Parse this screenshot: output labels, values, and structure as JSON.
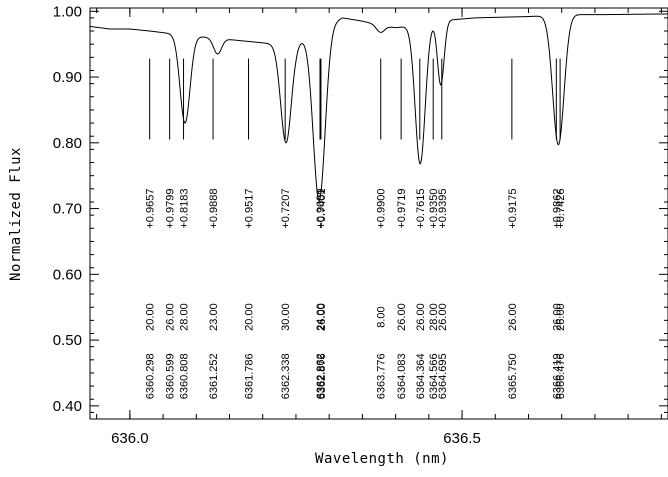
{
  "chart_data": {
    "type": "line",
    "xlabel": "Wavelength (nm)",
    "ylabel": "Normalized Flux",
    "xlim": [
      635.94,
      636.81
    ],
    "ylim": [
      0.38,
      1.005
    ],
    "x_ticks": [
      636.0,
      636.5
    ],
    "x_tick_labels": [
      "636.0",
      "636.5"
    ],
    "y_ticks": [
      0.4,
      0.5,
      0.6,
      0.7,
      0.8,
      0.9,
      1.0
    ],
    "y_tick_labels": [
      "0.40",
      "0.50",
      "0.60",
      "0.70",
      "0.80",
      "0.90",
      "1.00"
    ],
    "spectrum_continuum": [
      [
        635.94,
        0.977
      ],
      [
        635.97,
        0.973
      ],
      [
        636.0,
        0.973
      ],
      [
        636.03,
        0.97
      ],
      [
        636.07,
        0.965
      ],
      [
        636.12,
        0.96
      ],
      [
        636.17,
        0.955
      ],
      [
        636.22,
        0.95
      ],
      [
        636.25,
        0.95
      ],
      [
        636.28,
        0.972
      ],
      [
        636.32,
        0.99
      ],
      [
        636.35,
        0.985
      ],
      [
        636.38,
        0.978
      ],
      [
        636.4,
        0.975
      ],
      [
        636.44,
        0.98
      ],
      [
        636.46,
        0.985
      ],
      [
        636.52,
        0.99
      ],
      [
        636.6,
        0.992
      ],
      [
        636.66,
        0.995
      ],
      [
        636.72,
        0.995
      ],
      [
        636.81,
        0.996
      ]
    ],
    "absorption_lines": [
      {
        "wavelength": 636.0298,
        "depth": 0.9657,
        "ew": "20.00",
        "label": "6360.298",
        "depth_label": "+0.9657",
        "ew_label": "20.00"
      },
      {
        "wavelength": 636.0599,
        "depth": 0.9799,
        "ew": "26.00",
        "label": "6360.599",
        "depth_label": "+0.9799",
        "ew_label": "26.00"
      },
      {
        "wavelength": 636.0808,
        "depth": 0.8183,
        "ew": "28.00",
        "label": "6360.808",
        "depth_label": "+0.8183",
        "ew_label": "28.00"
      },
      {
        "wavelength": 636.1252,
        "depth": 0.9888,
        "ew": "23.00",
        "label": "6361.252",
        "depth_label": "+0.9888",
        "ew_label": "23.00"
      },
      {
        "wavelength": 636.1786,
        "depth": 0.9517,
        "ew": "20.00",
        "label": "6361.786",
        "depth_label": "+0.9517",
        "ew_label": "20.00"
      },
      {
        "wavelength": 636.2338,
        "depth": 0.7207,
        "ew": "30.00",
        "label": "6362.338",
        "depth_label": "+0.7207",
        "ew_label": "30.00"
      },
      {
        "wavelength": 636.2862,
        "depth": 0.9089,
        "ew": "24.00",
        "label": "6362.862",
        "depth_label": "+0.9089",
        "ew_label": "24.00"
      },
      {
        "wavelength": 636.2876,
        "depth": 0.7401,
        "ew": "26.00",
        "label": "6362.876",
        "depth_label": "+0.7401",
        "ew_label": "26.00"
      },
      {
        "wavelength": 636.3776,
        "depth": 0.99,
        "ew": "8.00",
        "label": "6363.776",
        "depth_label": "+0.9900",
        "ew_label": "8.00"
      },
      {
        "wavelength": 636.4083,
        "depth": 0.9719,
        "ew": "26.00",
        "label": "6364.083",
        "depth_label": "+0.9719",
        "ew_label": "26.00"
      },
      {
        "wavelength": 636.4364,
        "depth": 0.7615,
        "ew": "26.00",
        "label": "6364.364",
        "depth_label": "+0.7615",
        "ew_label": "26.00"
      },
      {
        "wavelength": 636.4566,
        "depth": 0.935,
        "ew": "28.00",
        "label": "6364.566",
        "depth_label": "+0.9350",
        "ew_label": "28.00"
      },
      {
        "wavelength": 636.4695,
        "depth": 0.9395,
        "ew": "26.00",
        "label": "6364.695",
        "depth_label": "+0.9395",
        "ew_label": "26.00"
      },
      {
        "wavelength": 636.575,
        "depth": 0.9175,
        "ew": "26.00",
        "label": "6365.750",
        "depth_label": "+0.9175",
        "ew_label": "26.00"
      },
      {
        "wavelength": 636.6419,
        "depth": 0.9862,
        "ew": "26.00",
        "label": "6366.419",
        "depth_label": "+0.9862",
        "ew_label": "26.00"
      },
      {
        "wavelength": 636.6476,
        "depth": 0.7426,
        "ew": "26.00",
        "label": "6366.476",
        "depth_label": "+0.7426",
        "ew_label": "26.00"
      }
    ],
    "spectrum_dips": [
      {
        "center": 636.083,
        "min_flux": 0.83,
        "width": 0.0075
      },
      {
        "center": 636.132,
        "min_flux": 0.935,
        "width": 0.006
      },
      {
        "center": 636.235,
        "min_flux": 0.8,
        "width": 0.008
      },
      {
        "center": 636.285,
        "min_flux": 0.712,
        "width": 0.009
      },
      {
        "center": 636.377,
        "min_flux": 0.968,
        "width": 0.006
      },
      {
        "center": 636.437,
        "min_flux": 0.768,
        "width": 0.0075
      },
      {
        "center": 636.468,
        "min_flux": 0.888,
        "width": 0.005
      },
      {
        "center": 636.645,
        "min_flux": 0.797,
        "width": 0.0085
      }
    ],
    "marker_flux_range": [
      0.805,
      0.928
    ],
    "depth_label_flux": 0.7,
    "ew_label_flux": 0.535,
    "wavelength_label_flux": 0.41,
    "grid": false,
    "legend": "none"
  }
}
